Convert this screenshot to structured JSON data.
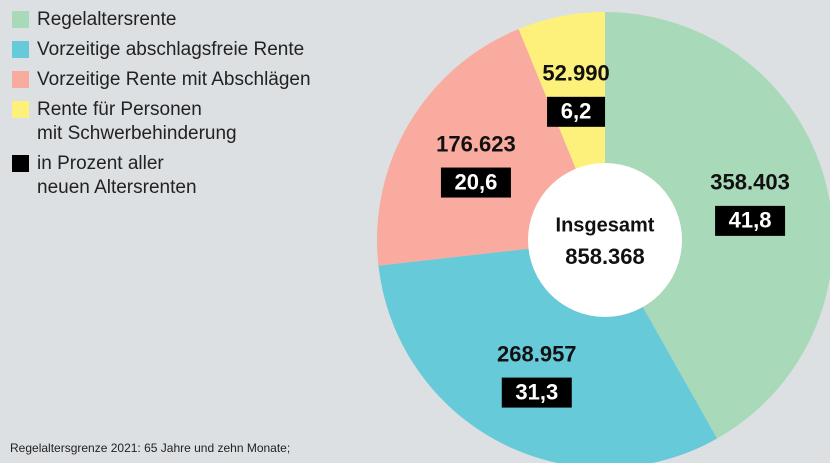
{
  "chart_data": {
    "type": "donut",
    "categories": [
      "Regelaltersrente",
      "Vorzeitige abschlagsfreie Rente",
      "Vorzeitige Rente mit Abschlägen",
      "Rente für Personen\nmit Schwerbehinderung"
    ],
    "values": [
      358403,
      268957,
      176623,
      52990
    ],
    "value_labels": [
      "358.403",
      "268.957",
      "176.623",
      "52.990"
    ],
    "percentages": [
      41.8,
      31.3,
      20.6,
      6.2
    ],
    "percentage_labels": [
      "41,8",
      "31,3",
      "20,6",
      "6,2"
    ],
    "percentage_legend": "in Prozent aller\nneuen Altersrenten",
    "percentage_color": "#000000",
    "colors": [
      "#a8d9b9",
      "#66cad9",
      "#f8ab9e",
      "#fdf17c"
    ],
    "center_title": "Insgesamt",
    "total": 858368,
    "total_label": "858.368",
    "footnote": "Regelaltersgrenze 2021: 65 Jahre und zehn Monate;"
  }
}
